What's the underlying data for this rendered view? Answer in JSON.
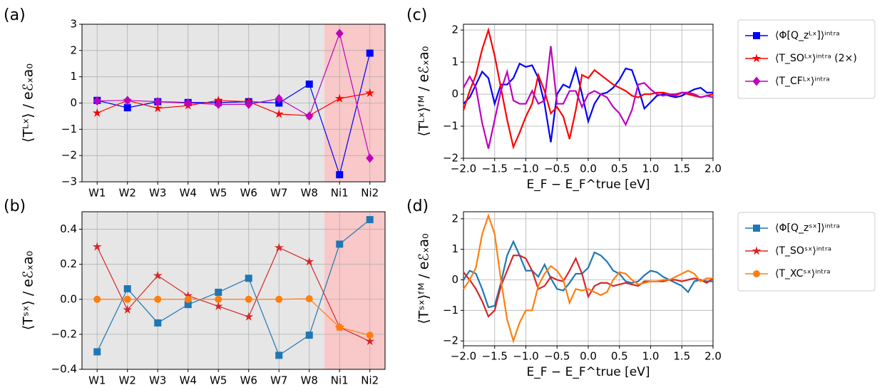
{
  "chart_data": [
    {
      "type": "line",
      "panel_label": "(a)",
      "ylabel": "⟨Tᴸˣ⟩ / eℰₓa₀",
      "categories": [
        "W1",
        "W2",
        "W3",
        "W4",
        "W5",
        "W6",
        "W7",
        "W8",
        "Ni1",
        "Ni2"
      ],
      "category_backgrounds": [
        "#e6e6e6",
        "#e6e6e6",
        "#e6e6e6",
        "#e6e6e6",
        "#e6e6e6",
        "#e6e6e6",
        "#e6e6e6",
        "#e6e6e6",
        "#f9c8c8",
        "#f9c8c8"
      ],
      "ylim": [
        -3,
        3
      ],
      "yticks": [
        {
          "value": -3,
          "label": "−3"
        },
        {
          "value": -2,
          "label": "−2"
        },
        {
          "value": -1,
          "label": "−1"
        },
        0,
        1,
        2,
        3
      ],
      "grid": true,
      "series": [
        {
          "color": "#0000ff",
          "marker": "square",
          "values": [
            0.1,
            -0.18,
            0.05,
            0.02,
            0.02,
            0.05,
            0.0,
            0.72,
            -2.73,
            1.9
          ]
        },
        {
          "color": "#ff0000",
          "marker": "star",
          "values": [
            -0.38,
            0.1,
            -0.2,
            -0.1,
            0.1,
            0.05,
            -0.42,
            -0.48,
            0.17,
            0.38
          ]
        },
        {
          "color": "#bf00bf",
          "marker": "diamond",
          "values": [
            0.08,
            0.1,
            0.05,
            0.0,
            -0.05,
            -0.05,
            0.17,
            -0.5,
            2.65,
            -2.1
          ]
        }
      ]
    },
    {
      "type": "line",
      "panel_label": "(b)",
      "ylabel": "⟨Tˢˣ⟩ / eℰₓa₀",
      "categories": [
        "W1",
        "W2",
        "W3",
        "W4",
        "W5",
        "W6",
        "W7",
        "W8",
        "Ni1",
        "Ni2"
      ],
      "category_backgrounds": [
        "#e6e6e6",
        "#e6e6e6",
        "#e6e6e6",
        "#e6e6e6",
        "#e6e6e6",
        "#e6e6e6",
        "#e6e6e6",
        "#e6e6e6",
        "#f9c8c8",
        "#f9c8c8"
      ],
      "ylim": [
        -0.4,
        0.5
      ],
      "yticks": [
        {
          "value": -0.4,
          "label": "−0.4"
        },
        {
          "value": -0.2,
          "label": "−0.2"
        },
        {
          "value": 0,
          "label": "0.0"
        },
        0.2,
        0.4
      ],
      "grid": true,
      "series": [
        {
          "color": "#1f77b4",
          "marker": "square",
          "values": [
            -0.3,
            0.06,
            -0.135,
            -0.03,
            0.04,
            0.12,
            -0.32,
            -0.205,
            0.315,
            0.455
          ]
        },
        {
          "color": "#d62728",
          "marker": "star",
          "values": [
            0.3,
            -0.06,
            0.135,
            0.02,
            -0.04,
            -0.1,
            0.295,
            0.215,
            -0.16,
            -0.24
          ]
        },
        {
          "color": "#ff7f0e",
          "marker": "circle",
          "values": [
            0,
            0,
            0,
            0,
            0,
            0,
            0,
            0.003,
            -0.16,
            -0.205
          ]
        }
      ]
    },
    {
      "type": "line",
      "panel_label": "(c)",
      "ylabel": "⟨Tᴸˣ⟩ᶠᴹ / eℰₓa₀",
      "xlabel": "E_F − E_F^true [eV]",
      "x": [
        -2,
        -1.9,
        -1.8,
        -1.7,
        -1.6,
        -1.5,
        -1.4,
        -1.3,
        -1.2,
        -1.1,
        -1,
        -0.9,
        -0.8,
        -0.7,
        -0.6,
        -0.5,
        -0.4,
        -0.3,
        -0.2,
        -0.1,
        0,
        0.1,
        0.2,
        0.3,
        0.4,
        0.5,
        0.6,
        0.7,
        0.8,
        0.9,
        1,
        1.1,
        1.2,
        1.3,
        1.4,
        1.5,
        1.6,
        1.7,
        1.8,
        1.9,
        2
      ],
      "xlim": [
        -2,
        2
      ],
      "xticks": [
        {
          "value": -2,
          "label": "−2.0"
        },
        {
          "value": -1.5,
          "label": "−1.5"
        },
        {
          "value": -1,
          "label": "−1.0"
        },
        {
          "value": -0.5,
          "label": "−0.5"
        },
        {
          "value": 0,
          "label": "0.0"
        },
        0.5,
        {
          "value": 1,
          "label": "1.0"
        },
        1.5,
        {
          "value": 2,
          "label": "2.0"
        }
      ],
      "ylim": [
        -2,
        2.18
      ],
      "yticks": [
        {
          "value": -2,
          "label": "−2"
        },
        {
          "value": -1,
          "label": "−1"
        },
        0,
        1,
        2
      ],
      "grid": true,
      "series": [
        {
          "name": "⟨Φ[Q_zᴸˣ]⟩ⁱⁿᵗʳᵃ",
          "color": "#0000ff",
          "marker": "square",
          "values": [
            -0.3,
            -0.1,
            0.3,
            0.7,
            0.5,
            -0.3,
            0.3,
            0.3,
            0.5,
            0.95,
            0.85,
            0.9,
            0.5,
            -0.3,
            -1.5,
            0,
            0.3,
            0.2,
            0.8,
            0,
            -0.85,
            -0.3,
            0,
            0.05,
            0.2,
            0.45,
            0.8,
            0.75,
            0.2,
            -0.45,
            -0.25,
            -0.05,
            0,
            -0.05,
            -0.1,
            -0.05,
            0.05,
            0.15,
            0.2,
            0.05,
            0.05
          ]
        },
        {
          "name": "⟨T_SOᴸˣ⟩ⁱⁿᵗʳᵃ (2×)",
          "color": "#ff0000",
          "marker": "star",
          "values": [
            -0.5,
            0.1,
            0.6,
            1.4,
            2,
            1.2,
            0.2,
            -0.8,
            -1.65,
            -1.2,
            -0.7,
            -0.3,
            0.6,
            0.1,
            -0.6,
            -0.4,
            -0.7,
            -1.4,
            -0.5,
            0.6,
            0.5,
            0.75,
            0.6,
            0.45,
            0.3,
            0.2,
            0.1,
            -0.05,
            -0.1,
            0,
            0,
            0.05,
            0.05,
            0,
            -0.05,
            0.05,
            0,
            -0.05,
            -0.1,
            -0.05,
            0
          ]
        },
        {
          "name": "⟨T_CFᴸˣ⟩ⁱⁿᵗʳᵃ",
          "color": "#bf00bf",
          "marker": "diamond",
          "values": [
            0.2,
            0.55,
            0.2,
            -0.9,
            -1.7,
            -0.8,
            0.1,
            0.7,
            -0.2,
            -0.3,
            -0.3,
            0.1,
            -0.3,
            -0.2,
            1.5,
            -0.3,
            -0.3,
            0.1,
            0.1,
            -0.4,
            0,
            0.1,
            0,
            -0.1,
            -0.4,
            -0.6,
            -0.95,
            -0.5,
            0.3,
            0.35,
            0.15,
            0,
            -0.05,
            0,
            0,
            0.05,
            0.05,
            0,
            -0.1,
            -0.05,
            -0.1
          ]
        }
      ]
    },
    {
      "type": "line",
      "panel_label": "(d)",
      "ylabel": "⟨Tˢˣ⟩ᶠᴹ / eℰₓa₀",
      "xlabel": "E_F − E_F^true [eV]",
      "x": [
        -2,
        -1.9,
        -1.8,
        -1.7,
        -1.6,
        -1.5,
        -1.4,
        -1.3,
        -1.2,
        -1.1,
        -1,
        -0.9,
        -0.8,
        -0.7,
        -0.6,
        -0.5,
        -0.4,
        -0.3,
        -0.2,
        -0.1,
        0,
        0.1,
        0.2,
        0.3,
        0.4,
        0.5,
        0.6,
        0.7,
        0.8,
        0.9,
        1,
        1.1,
        1.2,
        1.3,
        1.4,
        1.5,
        1.6,
        1.7,
        1.8,
        1.9,
        2
      ],
      "xlim": [
        -2,
        2
      ],
      "xticks": [
        {
          "value": -2,
          "label": "−2.0"
        },
        {
          "value": -1.5,
          "label": "−1.5"
        },
        {
          "value": -1,
          "label": "−1.0"
        },
        {
          "value": -0.5,
          "label": "−0.5"
        },
        {
          "value": 0,
          "label": "0.0"
        },
        0.5,
        {
          "value": 1,
          "label": "1.0"
        },
        1.5,
        {
          "value": 2,
          "label": "2.0"
        }
      ],
      "ylim": [
        -2.16,
        2.23
      ],
      "yticks": [
        {
          "value": -2,
          "label": "−2"
        },
        {
          "value": -1,
          "label": "−1"
        },
        0,
        1,
        2
      ],
      "grid": true,
      "series": [
        {
          "name": "⟨Φ[Q_zˢˣ]⟩ⁱⁿᵗʳᵃ",
          "color": "#1f77b4",
          "marker": "square",
          "values": [
            0,
            0.3,
            0.2,
            -0.3,
            -0.9,
            -0.85,
            -0.1,
            0.8,
            1.25,
            0.8,
            0.3,
            0.3,
            0.1,
            0.5,
            0.05,
            -0.3,
            -0.35,
            -0.1,
            0.2,
            0.2,
            0.4,
            0.9,
            0.8,
            0.6,
            0.3,
            0.2,
            -0.05,
            -0.1,
            -0.05,
            0.15,
            0.3,
            0.25,
            0.1,
            0,
            -0.1,
            -0.2,
            -0.4,
            -0.05,
            0,
            -0.05,
            -0.05
          ]
        },
        {
          "name": "⟨T_SOˢˣ⟩ⁱⁿᵗʳᵃ",
          "color": "#d62728",
          "marker": "star",
          "values": [
            0.25,
            0,
            -0.3,
            -0.7,
            -1.2,
            -1,
            -0.2,
            0.3,
            0.8,
            0.8,
            0.7,
            0.3,
            -0.3,
            -0.2,
            0.1,
            0,
            -0.05,
            0.3,
            0.7,
            0.2,
            -0.55,
            -0.2,
            -0.1,
            -0.1,
            -0.2,
            -0.15,
            -0.1,
            -0.15,
            -0.2,
            -0.05,
            -0.05,
            -0.05,
            -0.05,
            0,
            0,
            -0.05,
            0,
            0.05,
            0,
            -0.1,
            0.05
          ]
        },
        {
          "name": "⟨T_XCˢˣ⟩ⁱⁿᵗʳᵃ",
          "color": "#ff7f0e",
          "marker": "circle",
          "values": [
            -0.3,
            0,
            0.4,
            1.5,
            2.1,
            1.5,
            0,
            -1.3,
            -2,
            -1.4,
            -1,
            -1,
            -0.2,
            0.2,
            0.45,
            0.3,
            0,
            -0.75,
            -0.3,
            -0.35,
            -0.3,
            -0.4,
            -0.5,
            -0.4,
            0,
            0.25,
            0.2,
            0,
            -0.15,
            -0.1,
            -0.05,
            -0.05,
            0,
            0,
            0.1,
            0.2,
            0.3,
            0.2,
            -0.05,
            0.05,
            0.05
          ]
        }
      ]
    }
  ]
}
